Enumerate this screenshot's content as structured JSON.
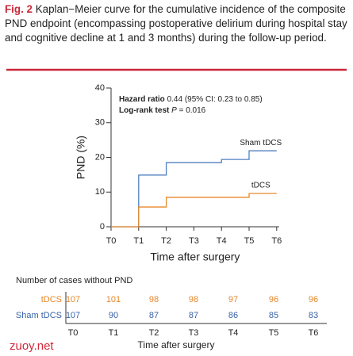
{
  "caption": {
    "label": "Fig. 2",
    "text": "Kaplan−Meier curve for the cumulative incidence of the composite PND endpoint (encompassing postoperative delirium during hospital stay and cognitive decline at 1 and 3 months) during the follow-up period."
  },
  "chart_data": {
    "type": "step",
    "x_label": "Time after surgery",
    "y_label": "PND (%)",
    "categories": [
      "T0",
      "T1",
      "T2",
      "T3",
      "T4",
      "T5",
      "T6"
    ],
    "series": [
      {
        "name": "Sham tDCS",
        "color": "#4f7fbf",
        "values": [
          0,
          14.9,
          18.5,
          18.5,
          19.4,
          21.9,
          21.9
        ]
      },
      {
        "name": "tDCS",
        "color": "#e8872a",
        "values": [
          0,
          5.7,
          8.5,
          8.5,
          8.5,
          9.6,
          9.6
        ]
      }
    ],
    "ylim": [
      0,
      40
    ],
    "yticks": [
      0,
      10,
      20,
      30,
      40
    ],
    "annotations": {
      "hazard_label": "Hazard ratio",
      "hazard_value": "0.44 (95% CI: 0.23 to 0.85)",
      "logrank_label": "Log-rank test",
      "logrank_p": "P",
      "logrank_value": "= 0.016"
    }
  },
  "risk_table": {
    "title": "Number of cases without PND",
    "rows": [
      {
        "name": "tDCS",
        "color": "#e8872a",
        "values": [
          107,
          101,
          98,
          98,
          97,
          96,
          96
        ]
      },
      {
        "name": "Sham tDCS",
        "color": "#3b64a8",
        "values": [
          107,
          90,
          87,
          87,
          86,
          85,
          83
        ]
      }
    ]
  },
  "watermark": "zuoy.net"
}
